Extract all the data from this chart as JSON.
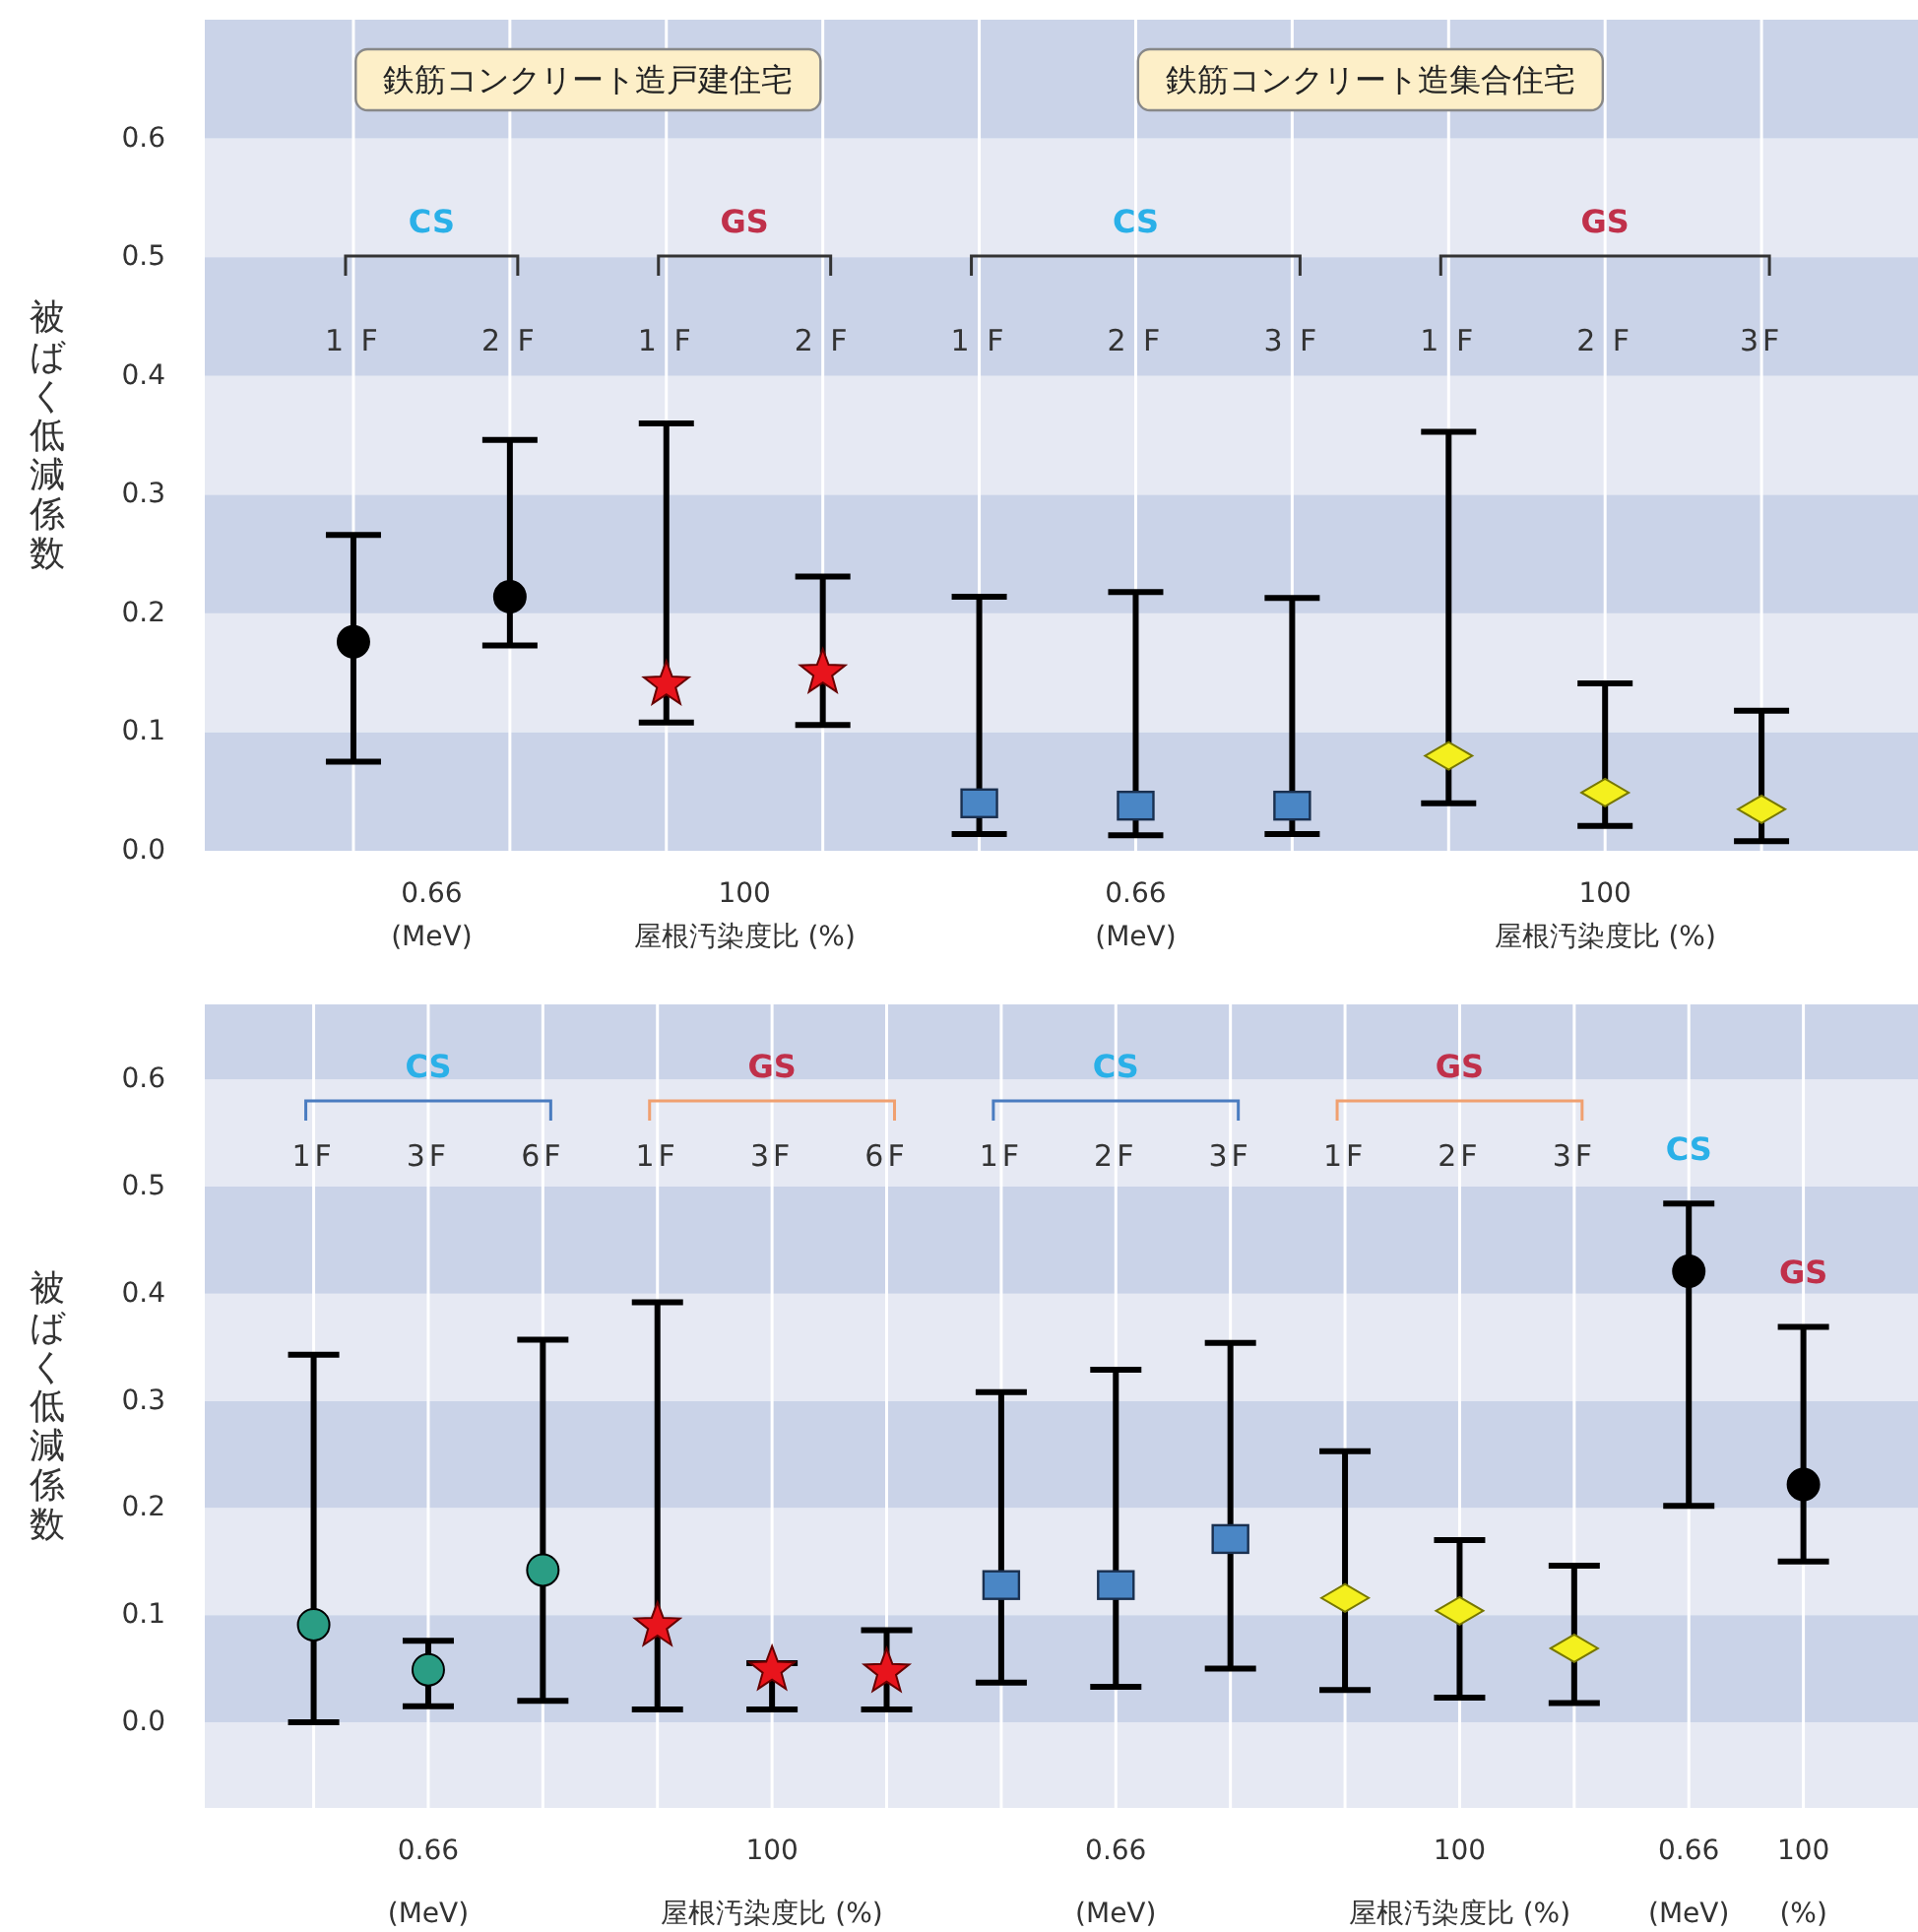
{
  "chart_data": [
    {
      "type": "scatter",
      "ylabel": "被ばく低減係数",
      "categories": [
        "1 F",
        "2 F",
        "1 F",
        "2 F",
        "1 F",
        "2 F",
        "3 F",
        "1 F",
        "2 F",
        "3F"
      ],
      "ylim": [
        0,
        0.7
      ],
      "yticks": [
        {
          "value": 0,
          "label": "0.0"
        },
        {
          "value": 0.1,
          "label": "0.1"
        },
        {
          "value": 0.2,
          "label": "0.2"
        },
        {
          "value": 0.3,
          "label": "0.3"
        },
        {
          "value": 0.4,
          "label": "0.4"
        },
        {
          "value": 0.5,
          "label": "0.5"
        },
        {
          "value": 0.6,
          "label": "0.6"
        }
      ],
      "grid": "x",
      "bands": [
        {
          "axis": "y",
          "from": 0,
          "to": 0.1,
          "color": "#cad3e8"
        },
        {
          "axis": "y",
          "from": 0.1,
          "to": 0.2,
          "color": "#e6e9f3"
        },
        {
          "axis": "y",
          "from": 0.2,
          "to": 0.3,
          "color": "#cad3e8"
        },
        {
          "axis": "y",
          "from": 0.3,
          "to": 0.4,
          "color": "#e6e9f3"
        },
        {
          "axis": "y",
          "from": 0.4,
          "to": 0.5,
          "color": "#cad3e8"
        },
        {
          "axis": "y",
          "from": 0.5,
          "to": 0.6,
          "color": "#e6e9f3"
        },
        {
          "axis": "y",
          "from": 0.6,
          "to": 0.7,
          "color": "#cad3e8"
        }
      ],
      "series": [
        {
          "color": "#000000",
          "marker": "circle",
          "values": [
            0.176,
            0.214,
            null,
            null,
            null,
            null,
            null,
            null,
            null,
            null
          ],
          "errors": [
            [
              0.075,
              0.266
            ],
            [
              0.173,
              0.346
            ],
            null,
            null,
            null,
            null,
            null,
            null,
            null,
            null
          ]
        },
        {
          "color": "#e8141c",
          "marker": "star",
          "values": [
            null,
            null,
            0.14,
            0.15,
            null,
            null,
            null,
            null,
            null,
            null
          ],
          "errors": [
            null,
            null,
            [
              0.108,
              0.36
            ],
            [
              0.106,
              0.231
            ],
            null,
            null,
            null,
            null,
            null,
            null
          ]
        },
        {
          "color": "#4a86c5",
          "marker": "square",
          "values": [
            null,
            null,
            null,
            null,
            0.04,
            0.038,
            0.038,
            null,
            null,
            null
          ],
          "errors": [
            null,
            null,
            null,
            null,
            [
              0.014,
              0.214
            ],
            [
              0.013,
              0.218
            ],
            [
              0.014,
              0.213
            ],
            null,
            null,
            null
          ]
        },
        {
          "color": "#f4f01e",
          "marker": "diamond",
          "values": [
            null,
            null,
            null,
            null,
            null,
            null,
            null,
            0.08,
            0.049,
            0.035
          ],
          "errors": [
            null,
            null,
            null,
            null,
            null,
            null,
            null,
            [
              0.04,
              0.353
            ],
            [
              0.021,
              0.141
            ],
            [
              0.008,
              0.118
            ]
          ]
        }
      ],
      "annotations": [
        "0.66\n(MeV)",
        "100\n屋根汚染度比 (%)",
        "0.66\n(MeV)",
        "100\n屋根汚染度比 (%)",
        "CS",
        "GS",
        "CS",
        "GS",
        "鉄筋コンクリート造戸建住宅",
        "鉄筋コンクリート造集合住宅"
      ]
    },
    {
      "type": "scatter",
      "ylabel": "被ばく低減係数",
      "categories": [
        "1F",
        "3F",
        "6F",
        "1F",
        "3F",
        "6F",
        "1F",
        "2F",
        "3F",
        "1F",
        "2F",
        "3F",
        null,
        null
      ],
      "ylim": [
        -0.08,
        0.67
      ],
      "yticks": [
        {
          "value": 0,
          "label": "0.0"
        },
        {
          "value": 0.1,
          "label": "0.1"
        },
        {
          "value": 0.2,
          "label": "0.2"
        },
        {
          "value": 0.3,
          "label": "0.3"
        },
        {
          "value": 0.4,
          "label": "0.4"
        },
        {
          "value": 0.5,
          "label": "0.5"
        },
        {
          "value": 0.6,
          "label": "0.6"
        }
      ],
      "grid": "x",
      "bands": [
        {
          "axis": "y",
          "from": -0.08,
          "to": 0,
          "color": "#e6e9f3"
        },
        {
          "axis": "y",
          "from": 0,
          "to": 0.1,
          "color": "#cad3e8"
        },
        {
          "axis": "y",
          "from": 0.1,
          "to": 0.2,
          "color": "#e6e9f3"
        },
        {
          "axis": "y",
          "from": 0.2,
          "to": 0.3,
          "color": "#cad3e8"
        },
        {
          "axis": "y",
          "from": 0.3,
          "to": 0.4,
          "color": "#e6e9f3"
        },
        {
          "axis": "y",
          "from": 0.4,
          "to": 0.5,
          "color": "#cad3e8"
        },
        {
          "axis": "y",
          "from": 0.5,
          "to": 0.6,
          "color": "#e6e9f3"
        },
        {
          "axis": "y",
          "from": 0.6,
          "to": 0.67,
          "color": "#cad3e8"
        }
      ],
      "series": [
        {
          "color": "#2a9d84",
          "marker": "circle",
          "values": [
            0.091,
            0.049,
            0.142,
            null,
            null,
            null,
            null,
            null,
            null,
            null,
            null,
            null,
            null,
            null
          ],
          "errors": [
            [
              0.0,
              0.343
            ],
            [
              0.015,
              0.076
            ],
            [
              0.02,
              0.357
            ],
            null,
            null,
            null,
            null,
            null,
            null,
            null,
            null,
            null,
            null,
            null
          ]
        },
        {
          "color": "#e8141c",
          "marker": "star",
          "values": [
            null,
            null,
            null,
            0.09,
            0.049,
            0.047,
            null,
            null,
            null,
            null,
            null,
            null,
            null,
            null
          ],
          "errors": [
            null,
            null,
            null,
            [
              0.012,
              0.392
            ],
            [
              0.012,
              0.055
            ],
            [
              0.012,
              0.086
            ],
            null,
            null,
            null,
            null,
            null,
            null,
            null,
            null
          ]
        },
        {
          "color": "#4a86c5",
          "marker": "square",
          "values": [
            null,
            null,
            null,
            null,
            null,
            null,
            0.128,
            0.128,
            0.171,
            null,
            null,
            null,
            null,
            null
          ],
          "errors": [
            null,
            null,
            null,
            null,
            null,
            null,
            [
              0.037,
              0.308
            ],
            [
              0.033,
              0.329
            ],
            [
              0.05,
              0.354
            ],
            null,
            null,
            null,
            null,
            null
          ]
        },
        {
          "color": "#f4f01e",
          "marker": "diamond",
          "values": [
            null,
            null,
            null,
            null,
            null,
            null,
            null,
            null,
            null,
            0.116,
            0.104,
            0.069,
            null,
            null
          ],
          "errors": [
            null,
            null,
            null,
            null,
            null,
            null,
            null,
            null,
            null,
            [
              0.03,
              0.253
            ],
            [
              0.023,
              0.17
            ],
            [
              0.018,
              0.146
            ],
            null,
            null
          ]
        },
        {
          "color": "#000000",
          "marker": "circle",
          "values": [
            null,
            null,
            null,
            null,
            null,
            null,
            null,
            null,
            null,
            null,
            null,
            null,
            0.421,
            null
          ],
          "errors": [
            null,
            null,
            null,
            null,
            null,
            null,
            null,
            null,
            null,
            null,
            null,
            null,
            [
              0.202,
              0.484
            ],
            null
          ]
        },
        {
          "color": "#000000",
          "marker": "circle",
          "values": [
            null,
            null,
            null,
            null,
            null,
            null,
            null,
            null,
            null,
            null,
            null,
            null,
            null,
            0.222
          ],
          "errors": [
            null,
            null,
            null,
            null,
            null,
            null,
            null,
            null,
            null,
            null,
            null,
            null,
            null,
            [
              0.15,
              0.369
            ]
          ]
        }
      ],
      "annotations": [
        "0.66\n(MeV)",
        "100\n屋根汚染度比 (%)",
        "0.66\n(MeV)",
        "100\n屋根汚染度比 (%)",
        "0.66\n(MeV)",
        "100\n(%)",
        "CS",
        "GS",
        "CS",
        "GS",
        "CS",
        "GS"
      ]
    }
  ]
}
